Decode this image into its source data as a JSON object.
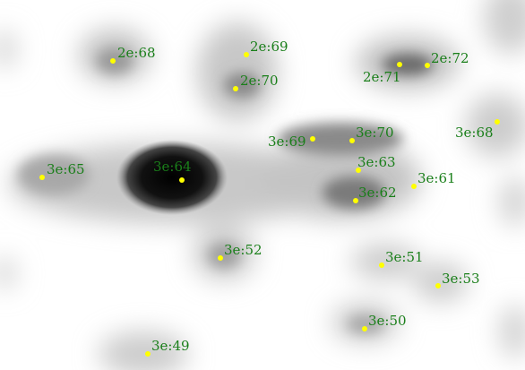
{
  "image": {
    "background_color": "#ffffff",
    "marker_color": "#ffff00",
    "label_color": "#1a7f1a"
  },
  "sources": [
    {
      "id": "2e:68",
      "label": "2e:68"
    },
    {
      "id": "2e:69",
      "label": "2e:69"
    },
    {
      "id": "2e:70",
      "label": "2e:70"
    },
    {
      "id": "2e:71",
      "label": "2e:71"
    },
    {
      "id": "2e:72",
      "label": "2e:72"
    },
    {
      "id": "3e:68",
      "label": "3e:68"
    },
    {
      "id": "3e:69",
      "label": "3e:69"
    },
    {
      "id": "3e:70",
      "label": "3e:70"
    },
    {
      "id": "3e:65",
      "label": "3e:65"
    },
    {
      "id": "3e:64",
      "label": "3e:64"
    },
    {
      "id": "3e:63",
      "label": "3e:63"
    },
    {
      "id": "3e:61",
      "label": "3e:61"
    },
    {
      "id": "3e:62",
      "label": "3e:62"
    },
    {
      "id": "3e:52",
      "label": "3e:52"
    },
    {
      "id": "3e:51",
      "label": "3e:51"
    },
    {
      "id": "3e:53",
      "label": "3e:53"
    },
    {
      "id": "3e:50",
      "label": "3e:50"
    },
    {
      "id": "3e:49",
      "label": "3e:49"
    }
  ]
}
